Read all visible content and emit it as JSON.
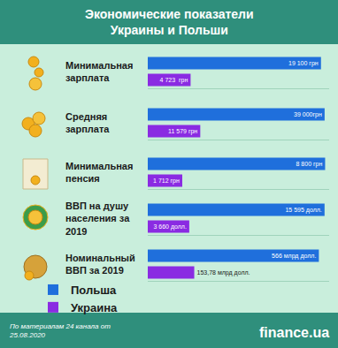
{
  "title": "Экономические показатели\nУкраины и Польши",
  "source": "По материалам 24 канала от\n25.08.2020",
  "brand": "finance.ua",
  "legend": "bottom",
  "chart_data": [
    {
      "type": "bar",
      "orientation": "horizontal",
      "title": "Минимальная\nзарплата",
      "data_labels": true,
      "tick_labels": false,
      "xlim": [
        0,
        20000
      ],
      "series": [
        {
          "name": "Польша",
          "color": "#1f6fdc",
          "values": [
            19100
          ],
          "value_labels": [
            "19 100 грн"
          ]
        },
        {
          "name": "Украина",
          "color": "#8a2be2",
          "values": [
            4723
          ],
          "value_labels": [
            "4 723  грн"
          ]
        }
      ]
    },
    {
      "type": "bar",
      "orientation": "horizontal",
      "title": "Средняя\nзарплата",
      "data_labels": true,
      "tick_labels": false,
      "xlim": [
        0,
        40000
      ],
      "series": [
        {
          "name": "Польша",
          "color": "#1f6fdc",
          "values": [
            39000
          ],
          "value_labels": [
            "39 000грн"
          ]
        },
        {
          "name": "Украина",
          "color": "#8a2be2",
          "values": [
            11579
          ],
          "value_labels": [
            "11 579 грн"
          ]
        }
      ]
    },
    {
      "type": "bar",
      "orientation": "horizontal",
      "title": "Минимальная\nпенсия",
      "data_labels": true,
      "tick_labels": false,
      "xlim": [
        0,
        9000
      ],
      "series": [
        {
          "name": "Польша",
          "color": "#1f6fdc",
          "values": [
            8800
          ],
          "value_labels": [
            "8 800 грн"
          ]
        },
        {
          "name": "Украина",
          "color": "#8a2be2",
          "values": [
            1712
          ],
          "value_labels": [
            "1 712 грн"
          ]
        }
      ]
    },
    {
      "type": "bar",
      "orientation": "horizontal",
      "title": "ВВП на душу\nнаселения за\n2019",
      "data_labels": true,
      "tick_labels": false,
      "xlim": [
        0,
        16000
      ],
      "series": [
        {
          "name": "Польша",
          "color": "#1f6fdc",
          "values": [
            15595
          ],
          "value_labels": [
            "15 595 долл."
          ]
        },
        {
          "name": "Украина",
          "color": "#8a2be2",
          "values": [
            3660
          ],
          "value_labels": [
            "3 660 долл."
          ]
        }
      ]
    },
    {
      "type": "bar",
      "orientation": "horizontal",
      "title": "Номинальный\nВВП за 2019",
      "data_labels": true,
      "tick_labels": false,
      "xlim": [
        0,
        600
      ],
      "series": [
        {
          "name": "Польша",
          "color": "#1f6fdc",
          "values": [
            566
          ],
          "value_labels": [
            "566 млрд долл."
          ]
        },
        {
          "name": "Украина",
          "color": "#8a2be2",
          "values": [
            153.78
          ],
          "value_labels": [
            "153,78 млрд долл."
          ]
        }
      ]
    }
  ]
}
